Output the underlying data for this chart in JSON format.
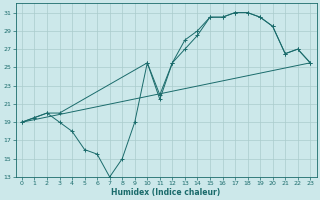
{
  "background_color": "#cce8ea",
  "grid_color": "#aacccc",
  "line_color": "#1a6b6b",
  "xlim": [
    -0.5,
    23.5
  ],
  "ylim": [
    13,
    32
  ],
  "xtick_vals": [
    0,
    1,
    2,
    3,
    4,
    5,
    6,
    7,
    8,
    9,
    10,
    11,
    12,
    13,
    14,
    15,
    16,
    17,
    18,
    19,
    20,
    21,
    22,
    23
  ],
  "ytick_vals": [
    13,
    15,
    17,
    19,
    21,
    23,
    25,
    27,
    29,
    31
  ],
  "xlabel": "Humidex (Indice chaleur)",
  "curve_low": {
    "x": [
      0,
      1,
      2,
      3,
      4,
      5,
      6,
      7,
      8,
      9,
      10,
      11,
      12,
      13,
      14,
      15,
      16,
      17,
      18,
      19,
      20,
      21,
      22,
      23
    ],
    "y": [
      19,
      19.5,
      20,
      19,
      18,
      16,
      15.5,
      13,
      15,
      19,
      25.5,
      21.5,
      25.5,
      27,
      28.5,
      30.5,
      30.5,
      31,
      31,
      30.5,
      29.5,
      26.5,
      27,
      25.5
    ]
  },
  "curve_high": {
    "x": [
      0,
      1,
      2,
      3,
      10,
      11,
      12,
      13,
      14,
      15,
      16,
      17,
      18,
      19,
      20,
      21,
      22,
      23
    ],
    "y": [
      19,
      19.5,
      20,
      20,
      25.5,
      22,
      25.5,
      28,
      29,
      30.5,
      30.5,
      31,
      31,
      30.5,
      29.5,
      26.5,
      27,
      25.5
    ]
  },
  "curve_straight": {
    "x": [
      0,
      23
    ],
    "y": [
      19,
      25.5
    ]
  }
}
